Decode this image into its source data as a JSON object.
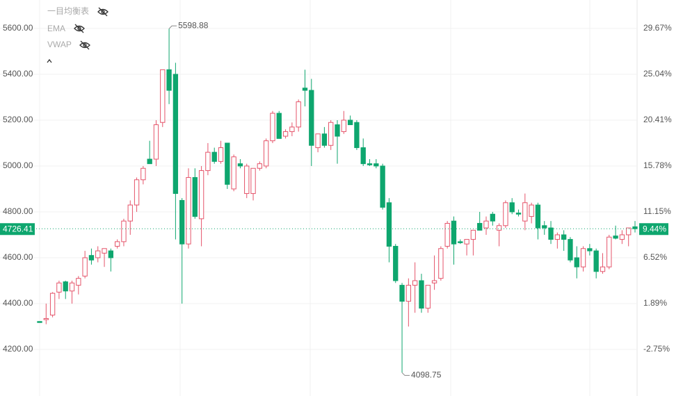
{
  "chart_data": {
    "type": "candlestick",
    "indicators": [
      "一目均衡表",
      "EMA",
      "VWAP"
    ],
    "up_color": "#e5546a",
    "down_color": "#0ea66e",
    "ylim": [
      3997,
      5724
    ],
    "yticks": [
      {
        "value": 4200,
        "label": "4200.00"
      },
      {
        "value": 4400,
        "label": "4400.00"
      },
      {
        "value": 4600,
        "label": "4600.00"
      },
      {
        "value": 4800,
        "label": "4800.00"
      },
      {
        "value": 5000,
        "label": "5000.00"
      },
      {
        "value": 5200,
        "label": "5200.00"
      },
      {
        "value": 5400,
        "label": "5400.00"
      },
      {
        "value": 5600,
        "label": "5600.00"
      }
    ],
    "y2lim": [
      -7.45,
      32.54
    ],
    "y2ticks": [
      {
        "value": -2.75,
        "label": "-2.75%"
      },
      {
        "value": 1.89,
        "label": "1.89%"
      },
      {
        "value": 6.52,
        "label": "6.52%"
      },
      {
        "value": 11.15,
        "label": "11.15%"
      },
      {
        "value": 15.78,
        "label": "15.78%"
      },
      {
        "value": 20.41,
        "label": "20.41%"
      },
      {
        "value": 25.04,
        "label": "25.04%"
      },
      {
        "value": 29.67,
        "label": "29.67%"
      }
    ],
    "grid": true,
    "max_label": 5598.88,
    "min_label": 4098.75,
    "last_price": 4726.41,
    "last_change": {
      "value": 9.44,
      "label": "9.44%"
    },
    "candles": [
      {
        "open": 4322,
        "high": 4322,
        "low": 4318,
        "close": 4318
      },
      {
        "open": 4330,
        "high": 4400,
        "low": 4310,
        "close": 4335
      },
      {
        "open": 4350,
        "high": 4450,
        "low": 4340,
        "close": 4445
      },
      {
        "open": 4450,
        "high": 4500,
        "low": 4420,
        "close": 4490
      },
      {
        "open": 4495,
        "high": 4500,
        "low": 4420,
        "close": 4455
      },
      {
        "open": 4455,
        "high": 4500,
        "low": 4400,
        "close": 4490
      },
      {
        "open": 4480,
        "high": 4520,
        "low": 4440,
        "close": 4510
      },
      {
        "open": 4520,
        "high": 4630,
        "low": 4510,
        "close": 4600
      },
      {
        "open": 4610,
        "high": 4640,
        "low": 4570,
        "close": 4590
      },
      {
        "open": 4600,
        "high": 4650,
        "low": 4580,
        "close": 4630
      },
      {
        "open": 4620,
        "high": 4640,
        "low": 4560,
        "close": 4640
      },
      {
        "open": 4630,
        "high": 4640,
        "low": 4540,
        "close": 4600
      },
      {
        "open": 4650,
        "high": 4680,
        "low": 4640,
        "close": 4670
      },
      {
        "open": 4670,
        "high": 4770,
        "low": 4650,
        "close": 4760
      },
      {
        "open": 4760,
        "high": 4850,
        "low": 4700,
        "close": 4830
      },
      {
        "open": 4830,
        "high": 4950,
        "low": 4800,
        "close": 4940
      },
      {
        "open": 4940,
        "high": 5000,
        "low": 4920,
        "close": 4990
      },
      {
        "open": 5030,
        "high": 5110,
        "low": 5010,
        "close": 5010
      },
      {
        "open": 5030,
        "high": 5200,
        "low": 5000,
        "close": 5180
      },
      {
        "open": 5190,
        "high": 5420,
        "low": 5170,
        "close": 5420
      },
      {
        "open": 5420,
        "high": 5598.88,
        "low": 5270,
        "close": 5330
      },
      {
        "open": 5400,
        "high": 5450,
        "low": 4680,
        "close": 4880
      },
      {
        "open": 4850,
        "high": 4860,
        "low": 4400,
        "close": 4660
      },
      {
        "open": 4660,
        "high": 4990,
        "low": 4640,
        "close": 4950
      },
      {
        "open": 4950,
        "high": 4990,
        "low": 4770,
        "close": 4780
      },
      {
        "open": 4770,
        "high": 5000,
        "low": 4650,
        "close": 4980
      },
      {
        "open": 4980,
        "high": 5100,
        "low": 4960,
        "close": 5060
      },
      {
        "open": 5060,
        "high": 5080,
        "low": 5010,
        "close": 5020
      },
      {
        "open": 5020,
        "high": 5110,
        "low": 5010,
        "close": 5080
      },
      {
        "open": 5100,
        "high": 5100,
        "low": 4900,
        "close": 4920
      },
      {
        "open": 4900,
        "high": 5050,
        "low": 4890,
        "close": 5040
      },
      {
        "open": 5010,
        "high": 5030,
        "low": 4990,
        "close": 5000
      },
      {
        "open": 4880,
        "high": 5010,
        "low": 4860,
        "close": 5000
      },
      {
        "open": 4880,
        "high": 4990,
        "low": 4850,
        "close": 4990
      },
      {
        "open": 4990,
        "high": 5020,
        "low": 4980,
        "close": 5010
      },
      {
        "open": 5000,
        "high": 5120,
        "low": 4990,
        "close": 5110
      },
      {
        "open": 5110,
        "high": 5240,
        "low": 5100,
        "close": 5230
      },
      {
        "open": 5230,
        "high": 5240,
        "low": 5120,
        "close": 5120
      },
      {
        "open": 5130,
        "high": 5160,
        "low": 5120,
        "close": 5150
      },
      {
        "open": 5150,
        "high": 5190,
        "low": 5130,
        "close": 5170
      },
      {
        "open": 5170,
        "high": 5290,
        "low": 5150,
        "close": 5280
      },
      {
        "open": 5340,
        "high": 5420,
        "low": 5260,
        "close": 5330
      },
      {
        "open": 5330,
        "high": 5380,
        "low": 5000,
        "close": 5090
      },
      {
        "open": 5080,
        "high": 5140,
        "low": 5060,
        "close": 5140
      },
      {
        "open": 5140,
        "high": 5170,
        "low": 5080,
        "close": 5090
      },
      {
        "open": 5090,
        "high": 5200,
        "low": 5070,
        "close": 5190
      },
      {
        "open": 5180,
        "high": 5200,
        "low": 5010,
        "close": 5130
      },
      {
        "open": 5150,
        "high": 5240,
        "low": 5140,
        "close": 5200
      },
      {
        "open": 5200,
        "high": 5220,
        "low": 5180,
        "close": 5180
      },
      {
        "open": 5190,
        "high": 5200,
        "low": 5070,
        "close": 5080
      },
      {
        "open": 5080,
        "high": 5120,
        "low": 5000,
        "close": 5010
      },
      {
        "open": 5010,
        "high": 5030,
        "low": 5000,
        "close": 5005
      },
      {
        "open": 5010,
        "high": 5030,
        "low": 4990,
        "close": 5000
      },
      {
        "open": 5000,
        "high": 5010,
        "low": 4810,
        "close": 4820
      },
      {
        "open": 4840,
        "high": 4860,
        "low": 4580,
        "close": 4650
      },
      {
        "open": 4650,
        "high": 4660,
        "low": 4490,
        "close": 4500
      },
      {
        "open": 4480,
        "high": 4490,
        "low": 4098.75,
        "close": 4410
      },
      {
        "open": 4410,
        "high": 4510,
        "low": 4300,
        "close": 4480
      },
      {
        "open": 4480,
        "high": 4580,
        "low": 4360,
        "close": 4500
      },
      {
        "open": 4500,
        "high": 4530,
        "low": 4360,
        "close": 4380
      },
      {
        "open": 4380,
        "high": 4480,
        "low": 4360,
        "close": 4480
      },
      {
        "open": 4490,
        "high": 4610,
        "low": 4460,
        "close": 4500
      },
      {
        "open": 4510,
        "high": 4650,
        "low": 4500,
        "close": 4640
      },
      {
        "open": 4650,
        "high": 4760,
        "low": 4640,
        "close": 4750
      },
      {
        "open": 4760,
        "high": 4780,
        "low": 4570,
        "close": 4660
      },
      {
        "open": 4670,
        "high": 4680,
        "low": 4660,
        "close": 4668
      },
      {
        "open": 4660,
        "high": 4680,
        "low": 4610,
        "close": 4680
      },
      {
        "open": 4680,
        "high": 4720,
        "low": 4610,
        "close": 4720
      },
      {
        "open": 4750,
        "high": 4800,
        "low": 4720,
        "close": 4720
      },
      {
        "open": 4730,
        "high": 4780,
        "low": 4700,
        "close": 4760
      },
      {
        "open": 4790,
        "high": 4800,
        "low": 4740,
        "close": 4760
      },
      {
        "open": 4720,
        "high": 4750,
        "low": 4650,
        "close": 4740
      },
      {
        "open": 4740,
        "high": 4850,
        "low": 4730,
        "close": 4840
      },
      {
        "open": 4840,
        "high": 4860,
        "low": 4790,
        "close": 4800
      },
      {
        "open": 4795,
        "high": 4810,
        "low": 4780,
        "close": 4790
      },
      {
        "open": 4760,
        "high": 4880,
        "low": 4720,
        "close": 4840
      },
      {
        "open": 4780,
        "high": 4840,
        "low": 4750,
        "close": 4830
      },
      {
        "open": 4830,
        "high": 4840,
        "low": 4680,
        "close": 4730
      },
      {
        "open": 4740,
        "high": 4760,
        "low": 4700,
        "close": 4730
      },
      {
        "open": 4730,
        "high": 4760,
        "low": 4660,
        "close": 4680
      },
      {
        "open": 4680,
        "high": 4710,
        "low": 4640,
        "close": 4700
      },
      {
        "open": 4700,
        "high": 4720,
        "low": 4630,
        "close": 4680
      },
      {
        "open": 4680,
        "high": 4690,
        "low": 4580,
        "close": 4590
      },
      {
        "open": 4600,
        "high": 4650,
        "low": 4510,
        "close": 4560
      },
      {
        "open": 4560,
        "high": 4650,
        "low": 4540,
        "close": 4640
      },
      {
        "open": 4640,
        "high": 4660,
        "low": 4610,
        "close": 4630
      },
      {
        "open": 4630,
        "high": 4640,
        "low": 4510,
        "close": 4540
      },
      {
        "open": 4540,
        "high": 4620,
        "low": 4530,
        "close": 4560
      },
      {
        "open": 4560,
        "high": 4700,
        "low": 4550,
        "close": 4690
      },
      {
        "open": 4695,
        "high": 4740,
        "low": 4680,
        "close": 4685
      },
      {
        "open": 4680,
        "high": 4720,
        "low": 4660,
        "close": 4700
      },
      {
        "open": 4700,
        "high": 4730,
        "low": 4650,
        "close": 4730
      },
      {
        "open": 4735,
        "high": 4760,
        "low": 4710,
        "close": 4726.41
      }
    ]
  }
}
